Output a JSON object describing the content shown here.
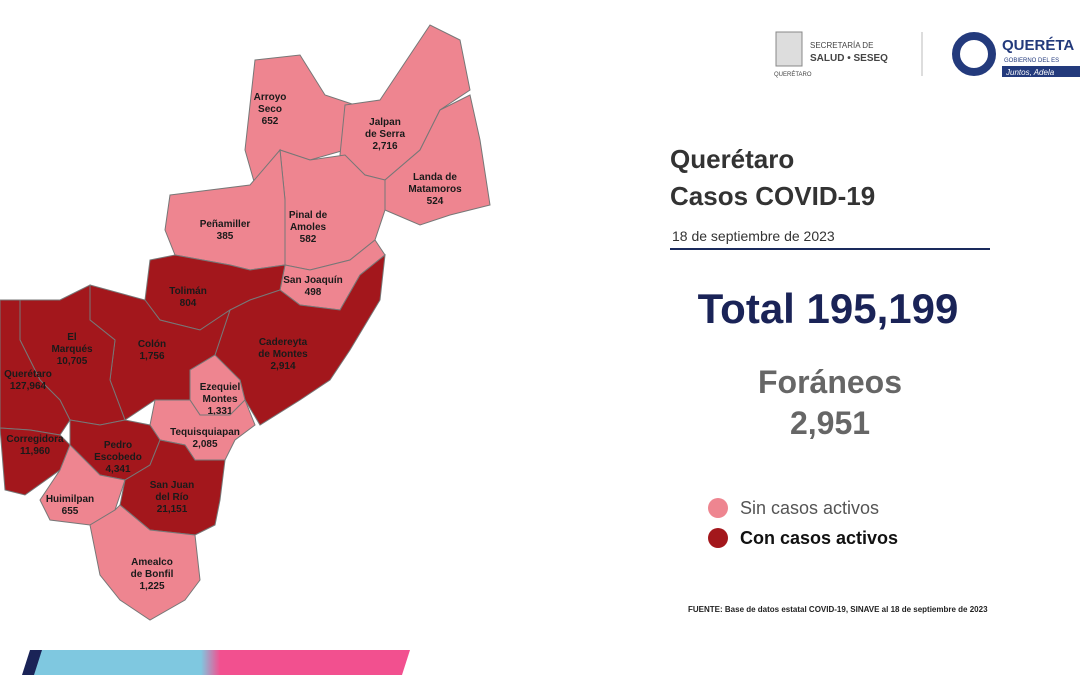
{
  "header": {
    "ministry": [
      "SECRETARÍA DE",
      "SALUD • SESEQ"
    ],
    "ministry_sub": "QUERÉTARO",
    "state": "QUERÉTA",
    "state_sub": "GOBIERNO DEL ES",
    "slogan": "Juntos, Adela"
  },
  "title": [
    "Querétaro",
    "Casos COVID-19"
  ],
  "date": "18 de septiembre de 2023",
  "total": {
    "label": "Total",
    "value": "195,199"
  },
  "foraneos": {
    "label": "Foráneos",
    "value": "2,951"
  },
  "legend": [
    {
      "label": "Sin casos activos",
      "color": "#ee8590"
    },
    {
      "label": "Con casos activos",
      "color": "#a3171c"
    }
  ],
  "source": "FUENTE: Base de datos estatal COVID-19, SINAVE al 18 de septiembre de 2023",
  "municipalities": [
    {
      "name": [
        "Arroyo",
        "Seco"
      ],
      "value": "652",
      "active": false
    },
    {
      "name": [
        "Jalpan",
        "de Serra"
      ],
      "value": "2,716",
      "active": false
    },
    {
      "name": [
        "Landa de",
        "Matamoros"
      ],
      "value": "524",
      "active": false
    },
    {
      "name": [
        "Pinal de",
        "Amoles"
      ],
      "value": "582",
      "active": false
    },
    {
      "name": [
        "Peñamiller"
      ],
      "value": "385",
      "active": false
    },
    {
      "name": [
        "San Joaquín"
      ],
      "value": "498",
      "active": false
    },
    {
      "name": [
        "Tolimán"
      ],
      "value": "804",
      "active": true
    },
    {
      "name": [
        "Cadereyta",
        "de Montes"
      ],
      "value": "2,914",
      "active": true
    },
    {
      "name": [
        "Colón"
      ],
      "value": "1,756",
      "active": true
    },
    {
      "name": [
        "El",
        "Marqués"
      ],
      "value": "10,705",
      "active": true
    },
    {
      "name": [
        "Querétaro"
      ],
      "value": "127,964",
      "active": true
    },
    {
      "name": [
        "Ezequiel",
        "Montes"
      ],
      "value": "1,331",
      "active": false
    },
    {
      "name": [
        "Tequisquiapan"
      ],
      "value": "2,085",
      "active": false
    },
    {
      "name": [
        "Corregidora"
      ],
      "value": "11,960",
      "active": true
    },
    {
      "name": [
        "Pedro",
        "Escobedo"
      ],
      "value": "4,341",
      "active": true
    },
    {
      "name": [
        "Huimilpan"
      ],
      "value": "655",
      "active": false
    },
    {
      "name": [
        "San Juan",
        "del Río"
      ],
      "value": "21,151",
      "active": true
    },
    {
      "name": [
        "Amealco",
        "de Bonfil"
      ],
      "value": "1,225",
      "active": false
    }
  ]
}
